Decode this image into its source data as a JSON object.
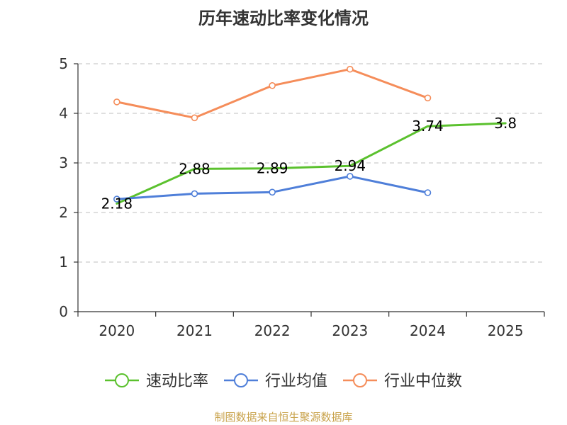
{
  "chart_data": {
    "type": "line",
    "title": "历年速动比率变化情况",
    "categories": [
      "2020",
      "2021",
      "2022",
      "2023",
      "2024",
      "2025"
    ],
    "ylim": [
      0,
      5
    ],
    "yticks": [
      0,
      1,
      2,
      3,
      4,
      5
    ],
    "grid": true,
    "legend_position": "bottom",
    "series": [
      {
        "name": "速动比率",
        "color": "#5bc12e",
        "values": [
          2.18,
          2.88,
          2.89,
          2.94,
          3.74,
          3.8
        ],
        "labels": [
          "2.18",
          "2.88",
          "2.89",
          "2.94",
          "3.74",
          "3.8"
        ],
        "show_labels": true,
        "show_markers": false
      },
      {
        "name": "行业均值",
        "color": "#4f7fd9",
        "values": [
          2.27,
          2.38,
          2.41,
          2.73,
          2.4,
          null
        ],
        "show_labels": false,
        "show_markers": true
      },
      {
        "name": "行业中位数",
        "color": "#f58d5a",
        "values": [
          4.23,
          3.91,
          4.56,
          4.89,
          4.31,
          null
        ],
        "show_labels": false,
        "show_markers": true
      }
    ]
  },
  "source": "制图数据来自恒生聚源数据库"
}
